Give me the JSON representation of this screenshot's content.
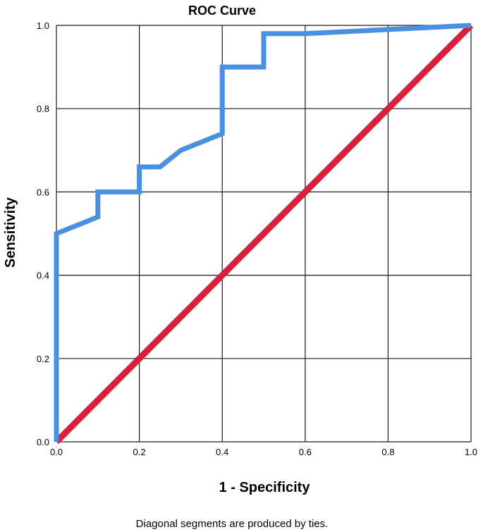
{
  "chart_data": {
    "type": "line",
    "title": "ROC Curve",
    "xlabel": "1 - Specificity",
    "ylabel": "Sensitivity",
    "footnote": "Diagonal segments are produced by ties.",
    "xlim": [
      0,
      1
    ],
    "ylim": [
      0,
      1
    ],
    "x_ticks": [
      "0.0",
      "0.2",
      "0.4",
      "0.6",
      "0.8",
      "1.0"
    ],
    "y_ticks": [
      "0.0",
      "0.2",
      "0.4",
      "0.6",
      "0.8",
      "1.0"
    ],
    "grid": true,
    "series": [
      {
        "color": "#4a90e2",
        "x": [
          0.0,
          0.0,
          0.1,
          0.1,
          0.2,
          0.2,
          0.25,
          0.3,
          0.4,
          0.4,
          0.5,
          0.5,
          0.6,
          1.0
        ],
        "y": [
          0.0,
          0.5,
          0.54,
          0.6,
          0.6,
          0.66,
          0.66,
          0.7,
          0.74,
          0.9,
          0.9,
          0.98,
          0.98,
          1.0
        ]
      },
      {
        "color": "#d6203e",
        "x": [
          0.0,
          1.0
        ],
        "y": [
          0.0,
          1.0
        ]
      }
    ]
  }
}
